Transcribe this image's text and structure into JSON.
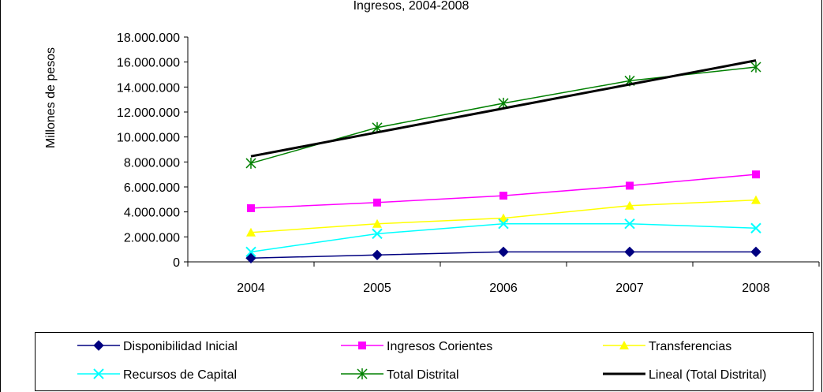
{
  "chart_data": {
    "type": "line",
    "title": "Ingresos, 2004-2008",
    "xlabel": "",
    "ylabel": "Millones de pesos",
    "ylim": [
      0,
      18000000
    ],
    "yticks": [
      "0",
      "2.000.000",
      "4.000.000",
      "6.000.000",
      "8.000.000",
      "10.000.000",
      "12.000.000",
      "14.000.000",
      "16.000.000",
      "18.000.000"
    ],
    "categories": [
      "2004",
      "2005",
      "2006",
      "2007",
      "2008"
    ],
    "grid": false,
    "legend": "bottom",
    "series": [
      {
        "name": "Disponibilidad Inicial",
        "values": [
          300000,
          550000,
          800000,
          800000,
          800000
        ],
        "color": "#000080",
        "marker": "diamond"
      },
      {
        "name": "Ingresos Corientes",
        "values": [
          4300000,
          4750000,
          5300000,
          6100000,
          7000000
        ],
        "color": "#FF00FF",
        "marker": "square"
      },
      {
        "name": "Transferencias",
        "values": [
          2350000,
          3050000,
          3500000,
          4500000,
          4950000
        ],
        "color": "#FFFF00",
        "marker": "triangle"
      },
      {
        "name": "Recursos de Capital",
        "values": [
          800000,
          2250000,
          3050000,
          3050000,
          2700000
        ],
        "color": "#00FFFF",
        "marker": "x"
      },
      {
        "name": "Total Distrital",
        "values": [
          7900000,
          10750000,
          12700000,
          14500000,
          15600000
        ],
        "color": "#008000",
        "marker": "star"
      },
      {
        "name": "Lineal (Total Distrital)",
        "values": [
          8450000,
          10370000,
          12290000,
          14210000,
          16130000
        ],
        "color": "#000000",
        "marker": "none",
        "trendline": true
      }
    ]
  }
}
